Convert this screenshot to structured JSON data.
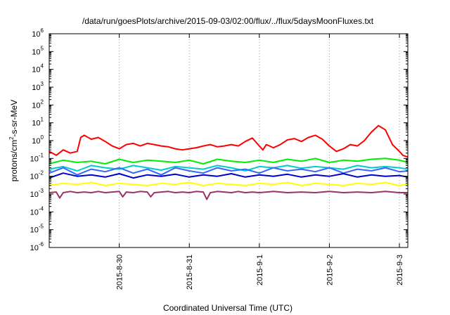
{
  "chart_data": {
    "type": "line",
    "title": "/data/run/goesPlots/archive/2015-09-03/02:00/flux/../flux/5daysMoonFluxes.txt",
    "xlabel": "Coordinated Universal Time (UTC)",
    "ylabel_parts": [
      "protons/cm",
      "2",
      "-s-sr-MeV"
    ],
    "yscale": "log",
    "ylim": [
      1e-06,
      1000000.0
    ],
    "xlim": [
      0,
      5.12
    ],
    "y_ticks": [
      {
        "exp": "-6",
        "value": 1e-06
      },
      {
        "exp": "-5",
        "value": 1e-05
      },
      {
        "exp": "-4",
        "value": 0.0001
      },
      {
        "exp": "-3",
        "value": 0.001
      },
      {
        "exp": "-2",
        "value": 0.01
      },
      {
        "exp": "-1",
        "value": 0.1
      },
      {
        "exp": "0",
        "value": 1
      },
      {
        "exp": "1",
        "value": 10
      },
      {
        "exp": "2",
        "value": 100
      },
      {
        "exp": "3",
        "value": 1000
      },
      {
        "exp": "4",
        "value": 10000
      },
      {
        "exp": "5",
        "value": 100000
      },
      {
        "exp": "6",
        "value": 1000000
      }
    ],
    "x_ticks": [
      {
        "label": "2015-8-30",
        "value": 1
      },
      {
        "label": "2015-8-31",
        "value": 2
      },
      {
        "label": "2015-9-1",
        "value": 3
      },
      {
        "label": "2015-9-2",
        "value": 4
      },
      {
        "label": "2015-9-3",
        "value": 5
      }
    ],
    "grid": "vertical dotted at x ticks",
    "series": [
      {
        "color": "#ff0000",
        "x": [
          0.0,
          0.1,
          0.2,
          0.3,
          0.4,
          0.45,
          0.5,
          0.6,
          0.7,
          0.8,
          0.9,
          1.0,
          1.1,
          1.2,
          1.3,
          1.4,
          1.5,
          1.6,
          1.7,
          1.8,
          1.9,
          2.0,
          2.1,
          2.2,
          2.3,
          2.4,
          2.5,
          2.6,
          2.7,
          2.8,
          2.9,
          3.0,
          3.05,
          3.1,
          3.2,
          3.3,
          3.4,
          3.5,
          3.6,
          3.7,
          3.8,
          3.9,
          4.0,
          4.1,
          4.2,
          4.3,
          4.4,
          4.5,
          4.6,
          4.7,
          4.8,
          4.9,
          5.0,
          5.05,
          5.12
        ],
        "y": [
          0.25,
          0.15,
          0.3,
          0.2,
          0.25,
          1.5,
          2.0,
          1.2,
          1.5,
          0.9,
          0.5,
          0.35,
          0.6,
          0.7,
          0.5,
          0.7,
          0.6,
          0.5,
          0.45,
          0.35,
          0.3,
          0.35,
          0.4,
          0.5,
          0.6,
          0.45,
          0.5,
          0.6,
          0.5,
          0.9,
          1.4,
          0.5,
          0.3,
          0.6,
          0.4,
          0.6,
          1.1,
          1.3,
          0.9,
          1.5,
          2.0,
          1.2,
          0.5,
          0.25,
          0.35,
          0.6,
          0.5,
          1.0,
          3.0,
          7.0,
          4.0,
          0.6,
          0.25,
          0.15,
          0.12
        ]
      },
      {
        "color": "#00ee00",
        "x": [
          0.0,
          0.2,
          0.4,
          0.6,
          0.8,
          1.0,
          1.2,
          1.4,
          1.6,
          1.8,
          2.0,
          2.2,
          2.4,
          2.6,
          2.8,
          3.0,
          3.2,
          3.4,
          3.6,
          3.8,
          4.0,
          4.2,
          4.4,
          4.6,
          4.8,
          5.0,
          5.12
        ],
        "y": [
          0.05,
          0.08,
          0.06,
          0.07,
          0.05,
          0.09,
          0.06,
          0.08,
          0.07,
          0.06,
          0.08,
          0.05,
          0.09,
          0.07,
          0.06,
          0.08,
          0.06,
          0.09,
          0.07,
          0.1,
          0.06,
          0.08,
          0.07,
          0.09,
          0.1,
          0.08,
          0.06
        ]
      },
      {
        "color": "#00cccc",
        "x": [
          0.0,
          0.2,
          0.4,
          0.6,
          0.8,
          1.0,
          1.2,
          1.4,
          1.6,
          1.8,
          2.0,
          2.2,
          2.4,
          2.6,
          2.8,
          3.0,
          3.2,
          3.4,
          3.6,
          3.8,
          4.0,
          4.2,
          4.4,
          4.6,
          4.8,
          5.0,
          5.12
        ],
        "y": [
          0.025,
          0.035,
          0.02,
          0.04,
          0.03,
          0.025,
          0.04,
          0.03,
          0.022,
          0.035,
          0.03,
          0.025,
          0.04,
          0.03,
          0.02,
          0.035,
          0.03,
          0.04,
          0.028,
          0.035,
          0.03,
          0.025,
          0.04,
          0.03,
          0.035,
          0.03,
          0.025
        ]
      },
      {
        "color": "#3366ff",
        "x": [
          0.0,
          0.2,
          0.4,
          0.6,
          0.8,
          1.0,
          1.2,
          1.4,
          1.6,
          1.8,
          2.0,
          2.2,
          2.4,
          2.6,
          2.8,
          3.0,
          3.2,
          3.4,
          3.6,
          3.8,
          4.0,
          4.2,
          4.4,
          4.6,
          4.8,
          5.0,
          5.12
        ],
        "y": [
          0.015,
          0.03,
          0.012,
          0.025,
          0.018,
          0.03,
          0.015,
          0.025,
          0.012,
          0.03,
          0.02,
          0.015,
          0.03,
          0.02,
          0.025,
          0.015,
          0.03,
          0.02,
          0.025,
          0.018,
          0.03,
          0.015,
          0.025,
          0.02,
          0.03,
          0.018,
          0.02
        ]
      },
      {
        "color": "#0000cc",
        "x": [
          0.0,
          0.2,
          0.4,
          0.6,
          0.8,
          1.0,
          1.2,
          1.4,
          1.6,
          1.8,
          2.0,
          2.2,
          2.4,
          2.6,
          2.8,
          3.0,
          3.2,
          3.4,
          3.6,
          3.8,
          4.0,
          4.2,
          4.4,
          4.6,
          4.8,
          5.0,
          5.12
        ],
        "y": [
          0.008,
          0.015,
          0.01,
          0.012,
          0.009,
          0.014,
          0.008,
          0.012,
          0.01,
          0.013,
          0.009,
          0.012,
          0.01,
          0.014,
          0.009,
          0.012,
          0.01,
          0.013,
          0.009,
          0.012,
          0.01,
          0.014,
          0.009,
          0.012,
          0.01,
          0.011,
          0.009
        ]
      },
      {
        "color": "#ffff00",
        "x": [
          0.0,
          0.2,
          0.4,
          0.6,
          0.8,
          1.0,
          1.2,
          1.4,
          1.6,
          1.8,
          2.0,
          2.2,
          2.4,
          2.6,
          2.8,
          3.0,
          3.2,
          3.4,
          3.6,
          3.8,
          4.0,
          4.2,
          4.4,
          4.6,
          4.8,
          5.0,
          5.12
        ],
        "y": [
          0.003,
          0.004,
          0.0035,
          0.0045,
          0.003,
          0.004,
          0.0035,
          0.003,
          0.004,
          0.0035,
          0.0045,
          0.003,
          0.004,
          0.0035,
          0.003,
          0.004,
          0.0035,
          0.0045,
          0.003,
          0.004,
          0.0035,
          0.003,
          0.004,
          0.0035,
          0.0045,
          0.003,
          0.0035
        ]
      },
      {
        "color": "#993366",
        "x": [
          0.0,
          0.1,
          0.15,
          0.2,
          0.3,
          0.4,
          0.5,
          0.6,
          0.7,
          0.8,
          0.9,
          1.0,
          1.05,
          1.1,
          1.2,
          1.3,
          1.4,
          1.45,
          1.5,
          1.6,
          1.7,
          1.8,
          1.9,
          2.0,
          2.1,
          2.2,
          2.25,
          2.3,
          2.4,
          2.5,
          2.6,
          2.7,
          2.8,
          2.9,
          3.0,
          3.2,
          3.4,
          3.6,
          3.8,
          4.0,
          4.2,
          4.4,
          4.6,
          4.8,
          5.0,
          5.12
        ],
        "y": [
          0.0012,
          0.0013,
          0.0006,
          0.0012,
          0.0014,
          0.0012,
          0.0013,
          0.0012,
          0.0014,
          0.0012,
          0.0013,
          0.0014,
          0.0007,
          0.0013,
          0.0012,
          0.0014,
          0.0013,
          0.0007,
          0.0012,
          0.0013,
          0.0014,
          0.0012,
          0.0013,
          0.0012,
          0.0014,
          0.0013,
          0.0005,
          0.0012,
          0.0014,
          0.0013,
          0.0012,
          0.0014,
          0.0012,
          0.0013,
          0.0012,
          0.0014,
          0.0012,
          0.0013,
          0.0012,
          0.0014,
          0.0012,
          0.0013,
          0.0012,
          0.0014,
          0.0012,
          0.0012
        ]
      }
    ]
  }
}
